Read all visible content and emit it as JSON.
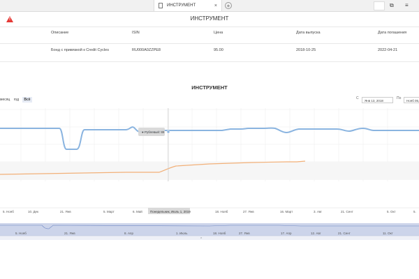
{
  "browser": {
    "tab_title": "ИНСТРУМЕНТ",
    "tab_close": "×",
    "new_tab": "+",
    "win_restore": "⧉",
    "win_menu": "≡"
  },
  "app": {
    "title": "ИНСТРУМЕНТ",
    "warning_glyph": "!"
  },
  "info": {
    "headers": [
      "Описание",
      "ISIN",
      "Цена",
      "Дата выпуска",
      "Дата погашения"
    ],
    "values": [
      "Бонд с привязкой к Credit Cycles",
      "RU000A0ZZPE8",
      "95.00",
      "2018-10-25",
      "2022-04-21"
    ]
  },
  "chart": {
    "title": "ИНСТРУМЕНТ",
    "ranges": [
      "месяц",
      "год",
      "Всё"
    ],
    "active_range": "Всё",
    "from_label": "С",
    "from_value": "Янв 13, 2018",
    "to_label": "По",
    "to_value": "Нояб 05, 2",
    "tooltip_series": "● Рублевый: 89",
    "crosshair_label": "Понедельник, Июль 1, 2019",
    "nav_collapse": "⌃",
    "x_ticks": [
      "5. Нояб",
      "10. Дек",
      "21. Янв",
      "5. Март",
      "6. Май",
      "18. Нояб",
      "27. Янв",
      "16. Март",
      "3. Авг",
      "21. Сент",
      "5. Окт",
      "5."
    ],
    "nav_ticks": [
      "5. Нояб",
      "21. Янв",
      "8. Апр",
      "1. Июль",
      "18. Нояб",
      "27. Янв",
      "17. Апр",
      "12. Авг",
      "21. Сент",
      "11. Окт"
    ]
  },
  "chart_data": {
    "type": "line",
    "series": [
      {
        "color": "#8ab4e0",
        "values": []
      },
      {
        "color": "#f2b078",
        "values": []
      }
    ],
    "grid": true,
    "navigator": true
  }
}
